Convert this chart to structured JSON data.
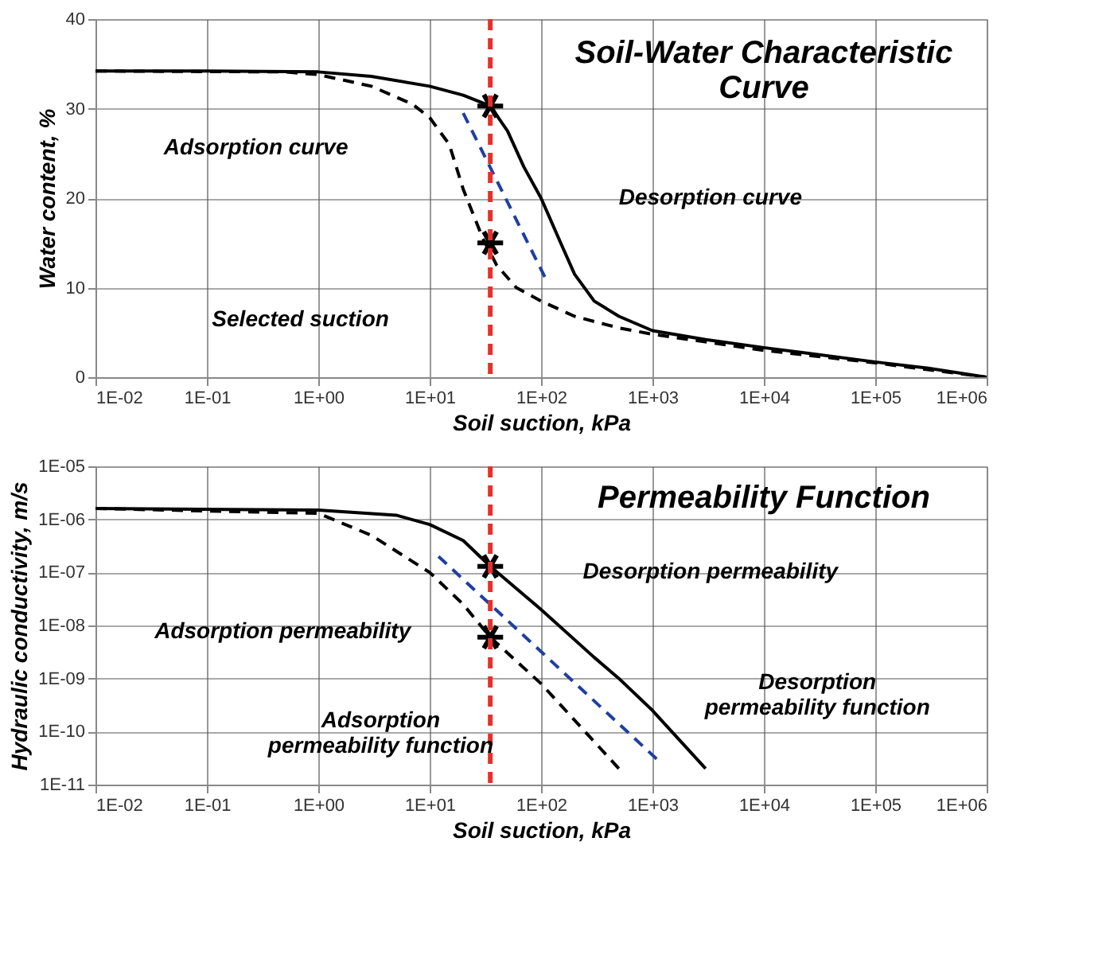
{
  "chart_data": [
    {
      "type": "line",
      "title": "Soil-Water Characteristic Curve",
      "xlabel": "Soil suction, kPa",
      "ylabel": "Water content, %",
      "log": "x",
      "grid": true,
      "xlim": [
        0.01,
        1000000
      ],
      "xticks": [
        {
          "value": 0.01,
          "label": "1E-02"
        },
        {
          "value": 0.1,
          "label": "1E-01"
        },
        {
          "value": 1,
          "label": "1E+00"
        },
        {
          "value": 10,
          "label": "1E+01"
        },
        {
          "value": 100,
          "label": "1E+02"
        },
        {
          "value": 1000,
          "label": "1E+03"
        },
        {
          "value": 10000,
          "label": "1E+04"
        },
        {
          "value": 100000,
          "label": "1E+05"
        },
        {
          "value": 1000000,
          "label": "1E+06"
        }
      ],
      "ylim": [
        0,
        40
      ],
      "yticks": [
        0,
        10,
        20,
        30,
        40
      ],
      "series": [
        {
          "color": "#000000",
          "line_style": "solid",
          "x": [
            0.01,
            0.1,
            1,
            3,
            10,
            20,
            35,
            50,
            70,
            100,
            150,
            200,
            300,
            500,
            1000,
            3000,
            10000,
            100000,
            300000,
            1000000
          ],
          "values": [
            34.2,
            34.2,
            34.1,
            33.6,
            32.5,
            31.5,
            30.3,
            27.5,
            23.5,
            20,
            15,
            11.5,
            8.5,
            6.8,
            5.2,
            4.2,
            3.3,
            1.7,
            1,
            0
          ]
        },
        {
          "color": "#000000",
          "line_style": "dashed",
          "x": [
            0.01,
            0.5,
            1,
            3,
            7,
            10,
            15,
            20,
            30,
            40,
            60,
            100,
            200,
            500,
            1000,
            10000,
            100000,
            1000000
          ],
          "values": [
            34.2,
            34.1,
            33.8,
            32.5,
            30.5,
            29,
            26,
            21,
            15.5,
            12.5,
            10,
            8.5,
            6.8,
            5.5,
            4.8,
            3,
            1.6,
            0
          ]
        },
        {
          "color": "#1f3f9f",
          "line_style": "dashed",
          "x": [
            20,
            110
          ],
          "values": [
            29.5,
            11
          ]
        },
        {
          "type": "scatter",
          "color": "#000000",
          "marker": "cross",
          "x": [
            35,
            35
          ],
          "values": [
            30.3,
            15
          ]
        }
      ],
      "ref_lines": [
        {
          "axis": "x",
          "value": 35,
          "color": "#e8302a",
          "line_style": "dashed"
        }
      ],
      "annotations": [
        "Adsorption curve",
        "Desorption curve",
        "Selected suction"
      ]
    },
    {
      "type": "line",
      "title": "Permeability  Function",
      "xlabel": "Soil suction, kPa",
      "ylabel": "Hydraulic conductivity, m/s",
      "log": "xy",
      "grid": true,
      "xlim": [
        0.01,
        1000000
      ],
      "xticks": [
        {
          "value": 0.01,
          "label": "1E-02"
        },
        {
          "value": 0.1,
          "label": "1E-01"
        },
        {
          "value": 1,
          "label": "1E+00"
        },
        {
          "value": 10,
          "label": "1E+01"
        },
        {
          "value": 100,
          "label": "1E+02"
        },
        {
          "value": 1000,
          "label": "1E+03"
        },
        {
          "value": 10000,
          "label": "1E+04"
        },
        {
          "value": 100000,
          "label": "1E+05"
        },
        {
          "value": 1000000,
          "label": "1E+06"
        }
      ],
      "ylim": [
        1e-11,
        1e-05
      ],
      "yticks": [
        {
          "value": 1e-11,
          "label": "1E-11"
        },
        {
          "value": 1e-10,
          "label": "1E-10"
        },
        {
          "value": 1e-09,
          "label": "1E-09"
        },
        {
          "value": 1e-08,
          "label": "1E-08"
        },
        {
          "value": 1e-07,
          "label": "1E-07"
        },
        {
          "value": 1e-06,
          "label": "1E-06"
        },
        {
          "value": 1e-05,
          "label": "1E-05"
        }
      ],
      "series": [
        {
          "color": "#000000",
          "line_style": "solid",
          "x": [
            0.01,
            1,
            5,
            10,
            20,
            35,
            100,
            300,
            500,
            1000,
            3000
          ],
          "values": [
            1.6e-06,
            1.5e-06,
            1.2e-06,
            8e-07,
            4e-07,
            1.3e-07,
            2e-08,
            2.5e-09,
            1e-09,
            2.5e-10,
            2e-11
          ]
        },
        {
          "color": "#000000",
          "line_style": "dashed",
          "x": [
            0.01,
            1,
            3,
            10,
            20,
            35,
            100,
            500
          ],
          "values": [
            1.6e-06,
            1.3e-06,
            5e-07,
            1e-07,
            2.5e-08,
            6e-09,
            8e-10,
            2e-11
          ]
        },
        {
          "color": "#1f3f9f",
          "line_style": "dashed",
          "x": [
            12,
            1100
          ],
          "values": [
            2e-07,
            3e-11
          ]
        },
        {
          "type": "scatter",
          "color": "#000000",
          "marker": "cross",
          "x": [
            35,
            35
          ],
          "values": [
            1.3e-07,
            6e-09
          ]
        }
      ],
      "ref_lines": [
        {
          "axis": "x",
          "value": 35,
          "color": "#e8302a",
          "line_style": "dashed"
        }
      ],
      "annotations": [
        "Desorption permeability",
        "Adsorption permeability",
        "Adsorption\npermeability function",
        "Desorption\npermeability function"
      ]
    }
  ]
}
